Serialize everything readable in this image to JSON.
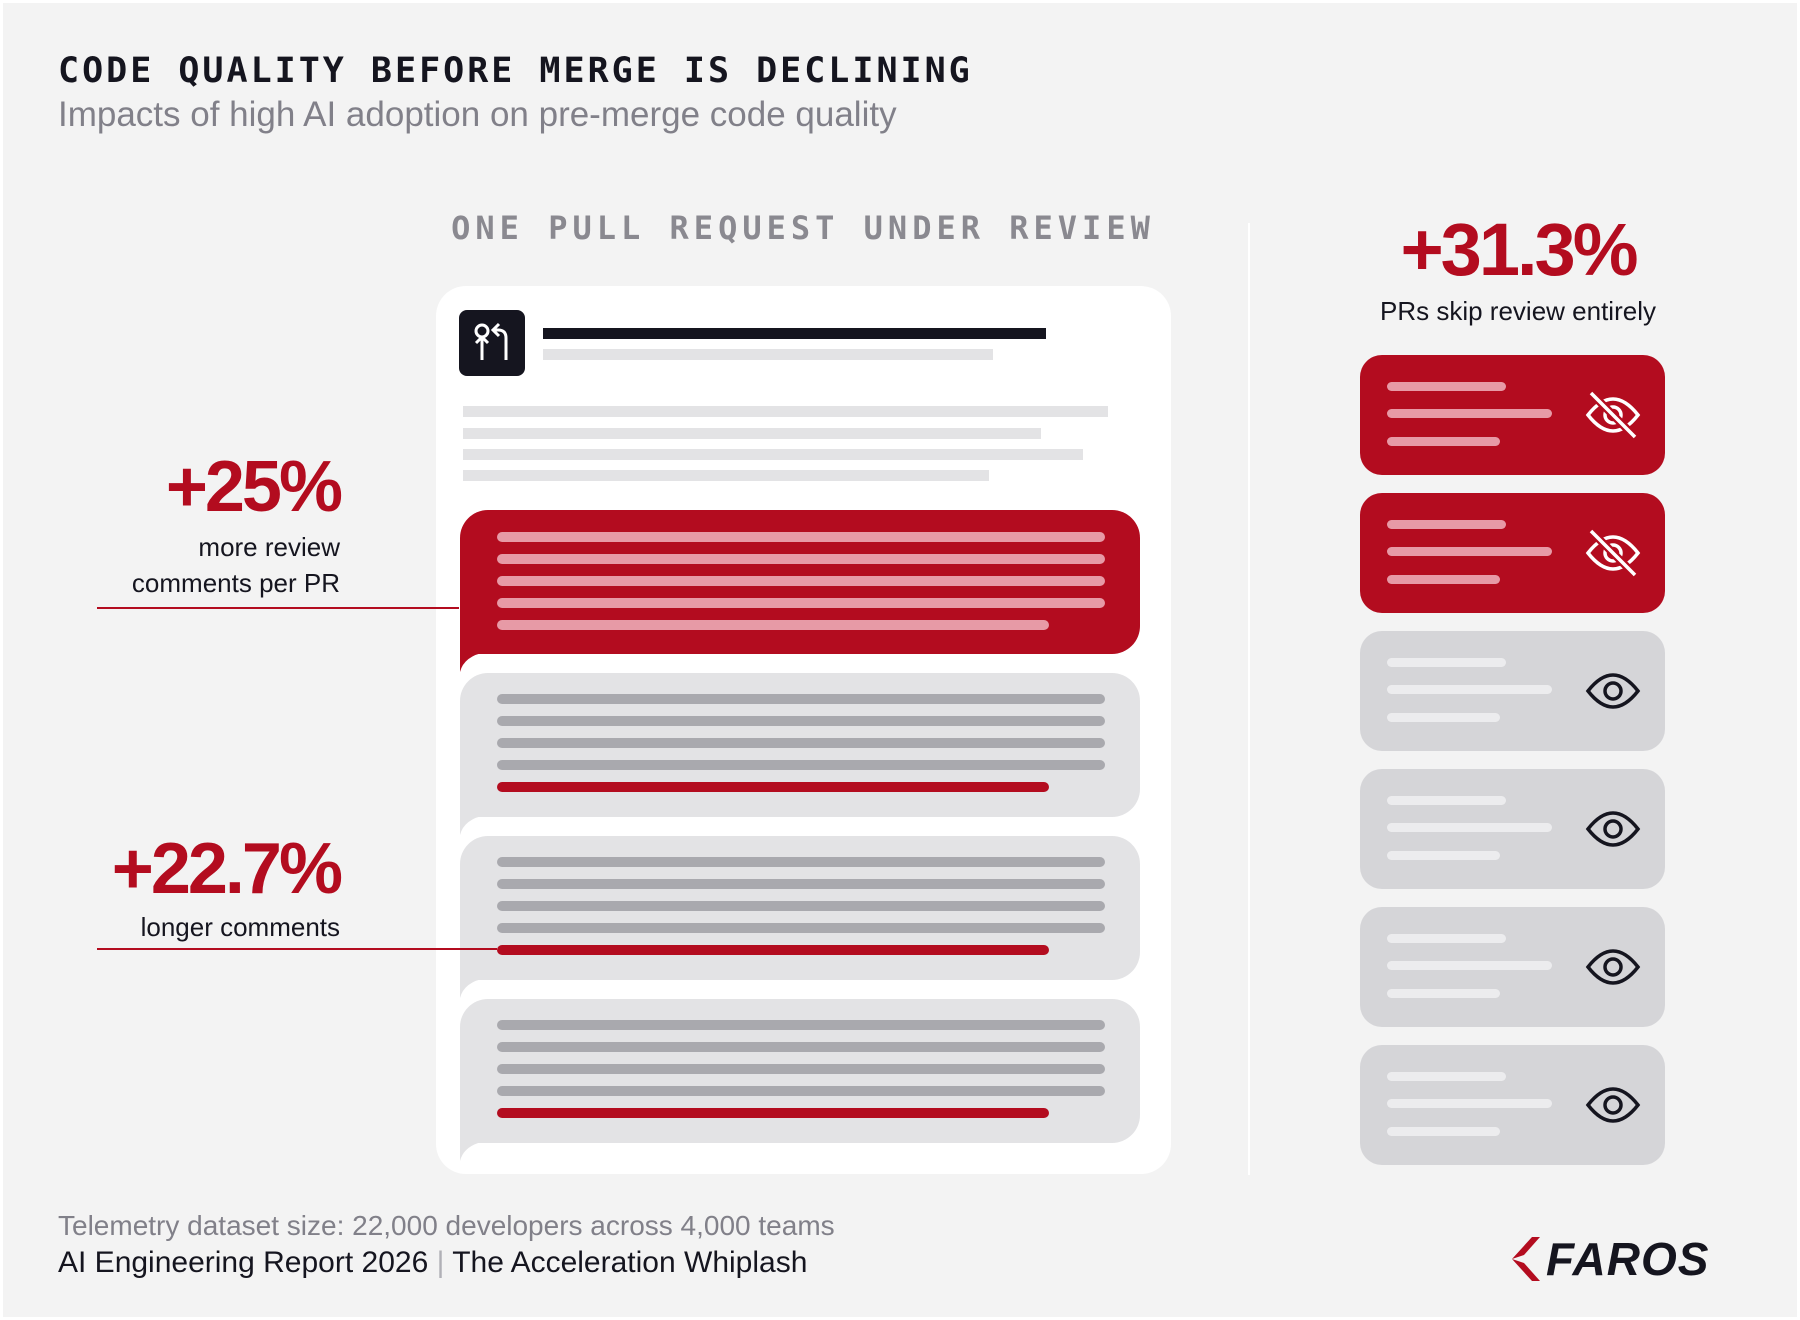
{
  "header": {
    "title": "CODE QUALITY BEFORE MERGE IS DECLINING",
    "subtitle": "Impacts of high AI adoption on pre-merge code quality"
  },
  "pull_request": {
    "heading": "ONE PULL REQUEST UNDER REVIEW"
  },
  "stats": {
    "comments": {
      "value": "+25%",
      "label_line1": "more review",
      "label_line2": "comments per PR"
    },
    "length": {
      "value": "+22.7%",
      "label": "longer comments"
    },
    "skip": {
      "value": "+31.3%",
      "label": "PRs skip review entirely"
    }
  },
  "review_list": [
    {
      "state": "skipped",
      "icon": "eye-off-icon"
    },
    {
      "state": "skipped",
      "icon": "eye-off-icon"
    },
    {
      "state": "reviewed",
      "icon": "eye-icon"
    },
    {
      "state": "reviewed",
      "icon": "eye-icon"
    },
    {
      "state": "reviewed",
      "icon": "eye-icon"
    },
    {
      "state": "reviewed",
      "icon": "eye-icon"
    }
  ],
  "footer": {
    "dataset": "Telemetry dataset size: 22,000 developers across 4,000 teams",
    "report": "AI Engineering Report 2026",
    "separator": "|",
    "report_subtitle": "The Acceleration Whiplash",
    "logo": "FAROS"
  },
  "colors": {
    "accent_red": "#b30c1f",
    "ink": "#15151f",
    "muted_gray": "#818089",
    "light_gray": "#e3e3e5",
    "card_gray": "#d5d5d8",
    "background": "#f3f3f3"
  }
}
